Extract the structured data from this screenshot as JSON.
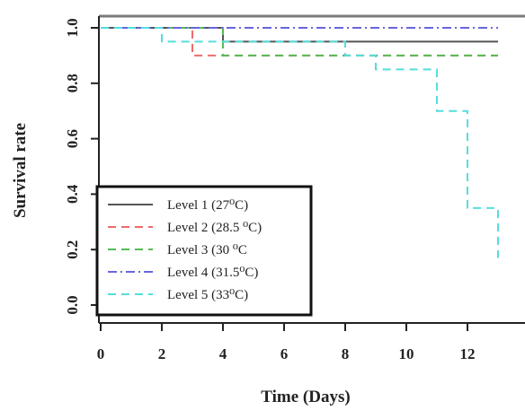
{
  "chart_data": {
    "type": "line",
    "subtype": "step",
    "xlabel": "Time (Days)",
    "ylabel": "Survival rate",
    "xlim": [
      0,
      13.5
    ],
    "ylim": [
      0,
      1.0
    ],
    "x_ticks": [
      0,
      2,
      4,
      6,
      8,
      10,
      12
    ],
    "y_ticks": [
      0.0,
      0.2,
      0.4,
      0.6,
      0.8,
      1.0
    ],
    "x_tick_labels": [
      "0",
      "2",
      "4",
      "6",
      "8",
      "10",
      "12"
    ],
    "y_tick_labels": [
      "0.0",
      "0.2",
      "0.4",
      "0.6",
      "0.8",
      "1.0"
    ],
    "grid": false,
    "legend_position": "bottom-left",
    "series": [
      {
        "name": "Level 1 (27⁰C)",
        "color": "#555555",
        "dash": "solid",
        "x": [
          0,
          4,
          4,
          13
        ],
        "y": [
          1.0,
          1.0,
          0.95,
          0.95
        ]
      },
      {
        "name": "Level 2 (28.5 ⁰C)",
        "color": "#ee6b6b",
        "dash": "dashed",
        "x": [
          0,
          3,
          3,
          13
        ],
        "y": [
          1.0,
          1.0,
          0.9,
          0.9
        ]
      },
      {
        "name": "Level 3 (30 ⁰C",
        "color": "#55bb55",
        "dash": "dashed",
        "x": [
          0,
          4,
          4,
          13
        ],
        "y": [
          1.0,
          1.0,
          0.9,
          0.9
        ]
      },
      {
        "name": "Level 4 (31.5⁰C)",
        "color": "#6666dd",
        "dash": "dashdot",
        "x": [
          0,
          13
        ],
        "y": [
          1.0,
          1.0
        ]
      },
      {
        "name": "Level 5 (33⁰C)",
        "color": "#55dddd",
        "dash": "dashed",
        "x": [
          0,
          2,
          2,
          8,
          8,
          9,
          9,
          11,
          11,
          12,
          12,
          13,
          13
        ],
        "y": [
          1.0,
          1.0,
          0.95,
          0.95,
          0.9,
          0.9,
          0.85,
          0.85,
          0.7,
          0.7,
          0.35,
          0.35,
          0.17
        ]
      }
    ]
  }
}
